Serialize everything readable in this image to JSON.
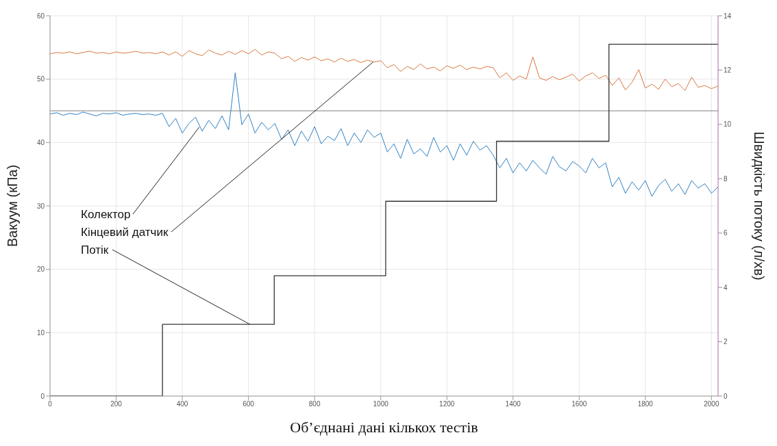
{
  "chart_data": {
    "type": "line",
    "xlabel": "Об’єднані дані кількох тестів",
    "ylabel": "Вакуум (кПа)",
    "y2label": "Швидкість потоку (л/хв)",
    "xlim": [
      0,
      2020
    ],
    "xticks": [
      0,
      200,
      400,
      600,
      800,
      1000,
      1200,
      1400,
      1600,
      1800,
      2000
    ],
    "ylim": [
      0,
      60
    ],
    "yticks": [
      0,
      10,
      20,
      30,
      40,
      50,
      60
    ],
    "y2lim": [
      0,
      14
    ],
    "y2ticks": [
      0,
      2,
      4,
      6,
      8,
      10,
      12,
      14
    ],
    "grid": true,
    "marker": "none",
    "line_style": "solid",
    "x": [
      0,
      20,
      40,
      60,
      80,
      100,
      120,
      140,
      160,
      180,
      200,
      220,
      240,
      260,
      280,
      300,
      320,
      340,
      360,
      380,
      400,
      420,
      440,
      460,
      480,
      500,
      520,
      540,
      560,
      580,
      600,
      620,
      640,
      660,
      680,
      700,
      720,
      740,
      760,
      780,
      800,
      820,
      840,
      860,
      880,
      900,
      920,
      940,
      960,
      980,
      1000,
      1020,
      1040,
      1060,
      1080,
      1100,
      1120,
      1140,
      1160,
      1180,
      1200,
      1220,
      1240,
      1260,
      1280,
      1300,
      1320,
      1340,
      1360,
      1380,
      1400,
      1420,
      1440,
      1460,
      1480,
      1500,
      1520,
      1540,
      1560,
      1580,
      1600,
      1620,
      1640,
      1660,
      1680,
      1700,
      1720,
      1740,
      1760,
      1780,
      1800,
      1820,
      1840,
      1860,
      1880,
      1900,
      1920,
      1940,
      1960,
      1980,
      2000,
      2020
    ],
    "series": [
      {
        "color": "#2f80c2",
        "values": [
          44.5,
          44.7,
          44.3,
          44.6,
          44.4,
          44.8,
          44.5,
          44.2,
          44.6,
          44.5,
          44.7,
          44.3,
          44.5,
          44.6,
          44.4,
          44.5,
          44.3,
          44.6,
          42.5,
          43.8,
          41.5,
          43.0,
          44.0,
          41.8,
          43.5,
          42.2,
          44.2,
          42.0,
          51.0,
          42.8,
          44.5,
          41.5,
          43.2,
          42.0,
          43.0,
          40.5,
          42.0,
          39.5,
          41.8,
          40.2,
          42.5,
          39.8,
          41.0,
          40.3,
          42.2,
          39.5,
          41.5,
          40.0,
          42.0,
          40.8,
          41.5,
          38.5,
          39.8,
          37.5,
          40.5,
          38.2,
          39.0,
          37.8,
          40.8,
          38.5,
          39.5,
          37.2,
          39.8,
          38.0,
          40.2,
          38.8,
          39.5,
          38.0,
          36.0,
          37.5,
          35.2,
          36.8,
          35.5,
          37.2,
          36.0,
          35.0,
          37.8,
          36.2,
          35.5,
          37.0,
          36.3,
          35.2,
          37.5,
          36.0,
          36.8,
          33.0,
          34.5,
          32.0,
          33.8,
          32.5,
          34.0,
          31.5,
          33.2,
          34.2,
          32.3,
          33.5,
          31.8,
          34.0,
          32.8,
          33.5,
          32.0,
          33.0
        ]
      },
      {
        "color": "#d9773f",
        "values": [
          54.0,
          54.2,
          54.1,
          54.3,
          54.0,
          54.2,
          54.4,
          54.1,
          54.2,
          54.0,
          54.3,
          54.1,
          54.2,
          54.4,
          54.1,
          54.2,
          54.0,
          54.3,
          53.8,
          54.3,
          53.6,
          54.5,
          54.0,
          53.7,
          54.6,
          54.1,
          53.8,
          54.4,
          53.9,
          54.5,
          54.0,
          54.7,
          53.8,
          54.3,
          54.1,
          53.2,
          53.6,
          52.8,
          53.4,
          53.0,
          53.5,
          52.9,
          53.2,
          52.7,
          53.3,
          52.8,
          53.1,
          52.6,
          53.0,
          52.7,
          52.9,
          51.8,
          52.3,
          51.2,
          52.0,
          51.5,
          52.4,
          51.6,
          51.9,
          51.3,
          52.1,
          51.7,
          52.2,
          51.5,
          51.9,
          51.6,
          52.0,
          51.8,
          50.2,
          51.0,
          49.8,
          50.5,
          50.0,
          53.5,
          50.2,
          49.8,
          50.4,
          49.9,
          50.3,
          50.8,
          49.7,
          50.5,
          51.0,
          50.1,
          50.6,
          49.0,
          50.2,
          48.3,
          49.5,
          51.5,
          48.6,
          49.2,
          48.4,
          50.0,
          48.8,
          49.3,
          48.2,
          50.3,
          48.7,
          49.0,
          48.5,
          48.9
        ]
      },
      {
        "type": "step",
        "axis": "y2",
        "color": "#333333",
        "x": [
          0,
          340,
          678,
          1015,
          1350,
          1690,
          2020
        ],
        "values": [
          0,
          2.64,
          4.43,
          7.17,
          9.38,
          12.95,
          12.95
        ]
      }
    ],
    "ref_lines": [
      {
        "axis": "y",
        "value": 45,
        "color": "#7f7f7f"
      }
    ],
    "annotations": [
      {
        "text": "Колектор",
        "x": 451,
        "y": 42.4
      },
      {
        "text": "Кінцевий датчик",
        "x": 977,
        "y": 52.7
      },
      {
        "text": "Потік",
        "x": 605,
        "y": 11.3
      }
    ]
  }
}
